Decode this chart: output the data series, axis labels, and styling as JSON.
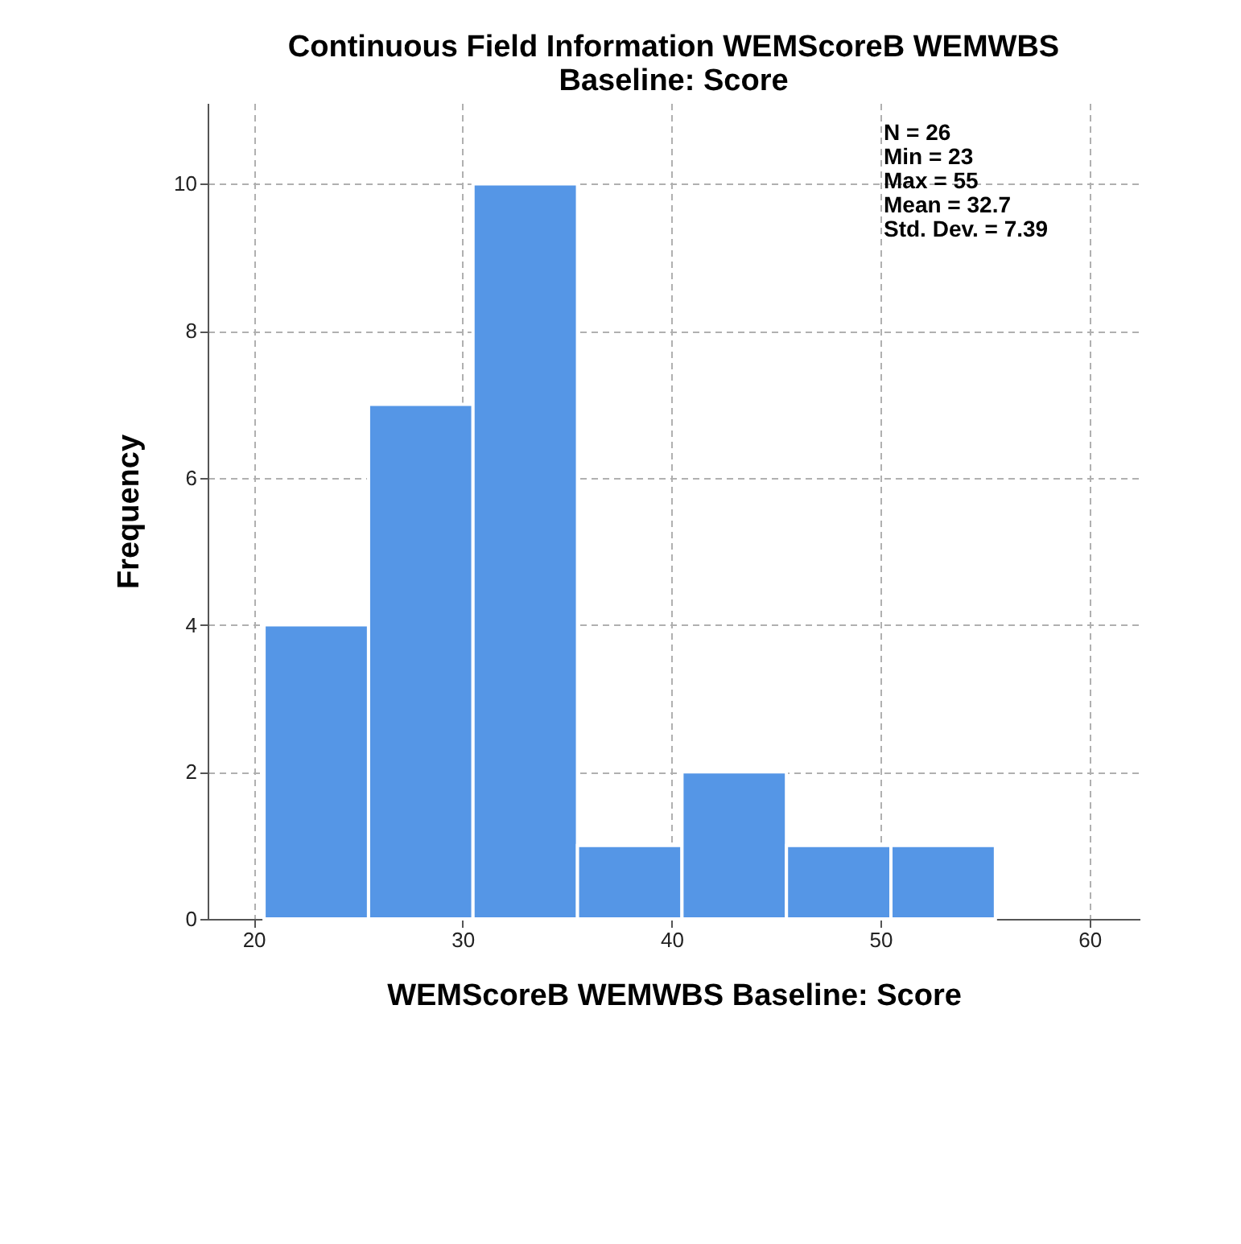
{
  "chart_data": {
    "type": "histogram",
    "title": "Continuous Field Information WEMScoreB WEMWBS Baseline: Score",
    "xlabel": "WEMScoreB WEMWBS Baseline: Score",
    "ylabel": "Frequency",
    "bins": [
      20.5,
      25.5,
      30.5,
      35.5,
      40.5,
      45.5,
      50.5,
      55.5
    ],
    "values": [
      4,
      7,
      10,
      1,
      2,
      1,
      1
    ],
    "color": "#5596e6",
    "xlim": [
      17.8,
      62.4
    ],
    "xticks": [
      20,
      30,
      40,
      50,
      60
    ],
    "ylim": [
      0,
      11.1
    ],
    "yticks": [
      0,
      2,
      4,
      6,
      8,
      10
    ],
    "grid": true,
    "annotations": [
      "N = 26",
      "Min = 23",
      "Max = 55",
      "Mean = 32.7",
      "Std. Dev. = 7.39"
    ]
  }
}
